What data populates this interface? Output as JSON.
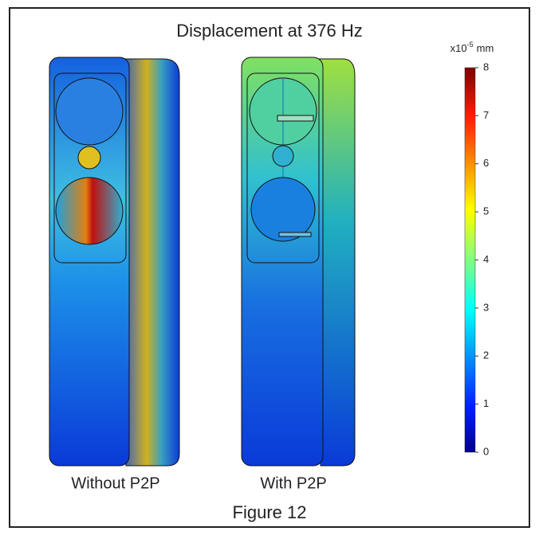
{
  "figure": {
    "title": "Displacement at 376 Hz",
    "colorbar": {
      "unit": {
        "base": "x10",
        "exponent": "-5",
        "suffix": "mm"
      },
      "lim": [
        0,
        8
      ],
      "ticks": [
        0,
        1,
        2,
        3,
        4,
        5,
        6,
        7,
        8
      ]
    },
    "panels": [
      {
        "label": "Without P2P"
      },
      {
        "label": "With P2P"
      }
    ],
    "caption": "Figure 12"
  }
}
